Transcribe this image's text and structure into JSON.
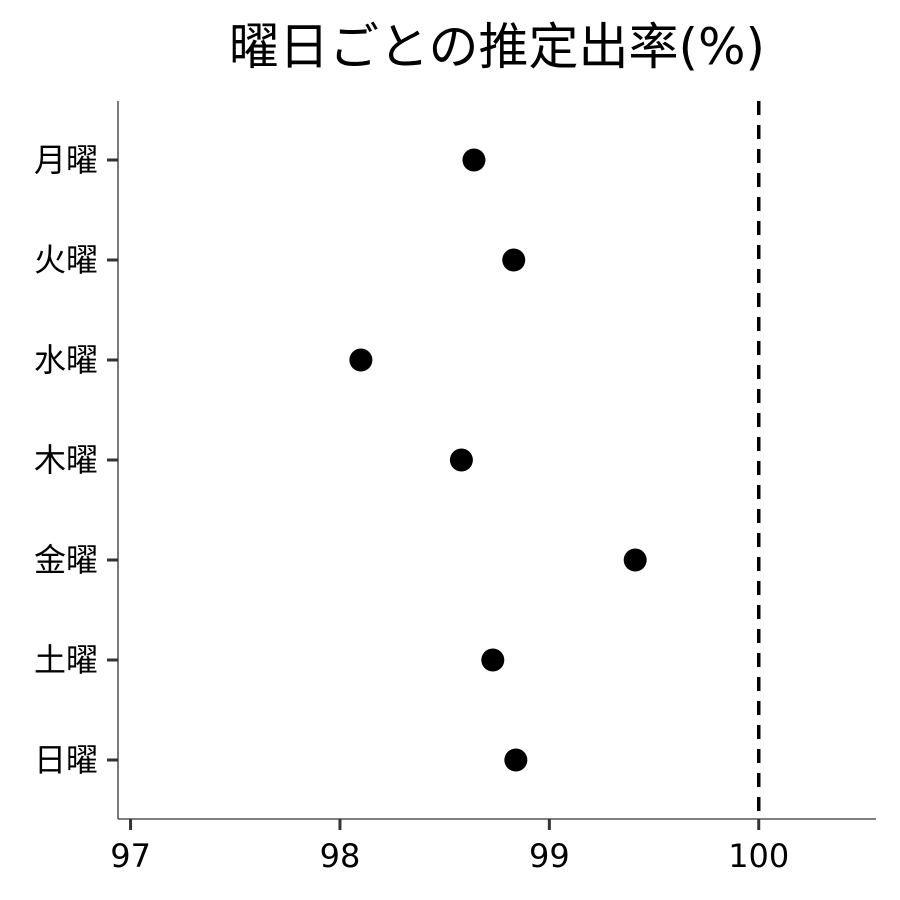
{
  "chart_data": {
    "type": "scatter",
    "title": "曜日ごとの推定出率(%)",
    "categories": [
      "月曜",
      "火曜",
      "水曜",
      "木曜",
      "金曜",
      "土曜",
      "日曜"
    ],
    "values": [
      98.64,
      98.83,
      98.1,
      98.58,
      99.41,
      98.73,
      98.84
    ],
    "xlim": [
      96.94,
      100.56
    ],
    "x_ticks": [
      97,
      98,
      99,
      100
    ],
    "x_tick_labels": [
      "97",
      "98",
      "99",
      "100"
    ],
    "reference_line": {
      "x": 100,
      "style": "dashed"
    },
    "xlabel": "",
    "ylabel": "",
    "grid": false,
    "legend": "none"
  }
}
